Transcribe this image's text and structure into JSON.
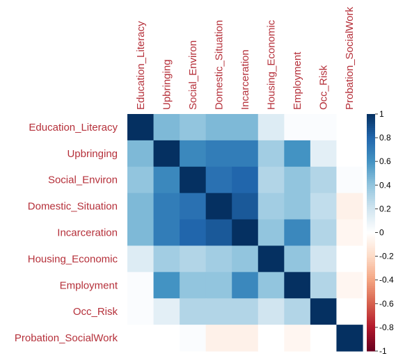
{
  "chart_data": {
    "type": "heatmap",
    "variables": [
      "Education_Literacy",
      "Upbringing",
      "Social_Environ",
      "Domestic_Situation",
      "Incarceration",
      "Housing_Economic",
      "Employment",
      "Occ_Risk",
      "Probation_SocialWork"
    ],
    "matrix": [
      [
        1.0,
        0.45,
        0.4,
        0.45,
        0.45,
        0.15,
        0.02,
        0.02,
        0.0
      ],
      [
        0.45,
        1.0,
        0.65,
        0.7,
        0.7,
        0.35,
        0.6,
        0.12,
        0.0
      ],
      [
        0.4,
        0.65,
        1.0,
        0.75,
        0.8,
        0.3,
        0.4,
        0.3,
        0.02
      ],
      [
        0.45,
        0.7,
        0.75,
        1.0,
        0.85,
        0.35,
        0.4,
        0.25,
        -0.08
      ],
      [
        0.45,
        0.7,
        0.8,
        0.85,
        1.0,
        0.4,
        0.65,
        0.3,
        -0.05
      ],
      [
        0.15,
        0.35,
        0.3,
        0.35,
        0.4,
        1.0,
        0.4,
        0.2,
        0.0
      ],
      [
        0.02,
        0.6,
        0.4,
        0.4,
        0.65,
        0.4,
        1.0,
        0.3,
        -0.05
      ],
      [
        0.02,
        0.12,
        0.3,
        0.3,
        0.3,
        0.2,
        0.3,
        1.0,
        0.0
      ],
      [
        0.0,
        0.0,
        0.02,
        -0.08,
        -0.08,
        0.0,
        -0.05,
        0.0,
        1.0
      ]
    ],
    "colorbar": {
      "range": [
        -1,
        1
      ],
      "ticks": [
        "1",
        "0.8",
        "0.6",
        "0.4",
        "0.2",
        "0",
        "-0.2",
        "-0.4",
        "-0.6",
        "-0.8",
        "-1"
      ],
      "tick_values": [
        1,
        0.8,
        0.6,
        0.4,
        0.2,
        0,
        -0.2,
        -0.4,
        -0.6,
        -0.8,
        -1
      ],
      "colors": [
        "#67001f",
        "#b2182b",
        "#d6604d",
        "#f4a582",
        "#fddbc7",
        "#ffffff",
        "#d1e5f0",
        "#92c5de",
        "#4393c3",
        "#2166ac",
        "#053061"
      ]
    },
    "label_color": "#b5303a",
    "legend": "right",
    "grid": false
  }
}
